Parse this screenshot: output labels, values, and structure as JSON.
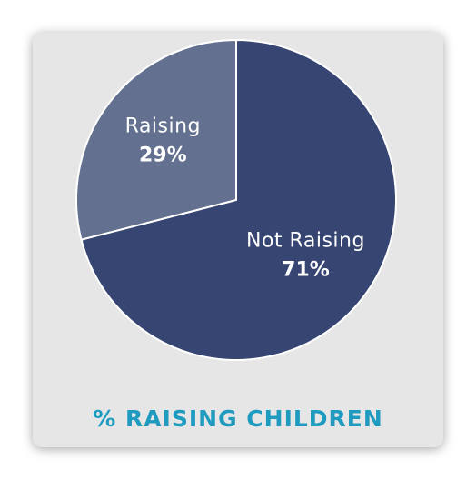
{
  "chart_data": {
    "type": "pie",
    "title": "% RAISING CHILDREN",
    "slices": [
      {
        "label": "Raising",
        "value": 29,
        "value_label": "29%",
        "color": "#63708f"
      },
      {
        "label": "Not Raising",
        "value": 71,
        "value_label": "71%",
        "color": "#364571"
      }
    ],
    "start": "12 o'clock",
    "direction": "counterclockwise from top for Raising"
  },
  "colors": {
    "title": "#1e9bbf",
    "card_background": "#e6e6e6",
    "slice_border": "#ffffff"
  }
}
